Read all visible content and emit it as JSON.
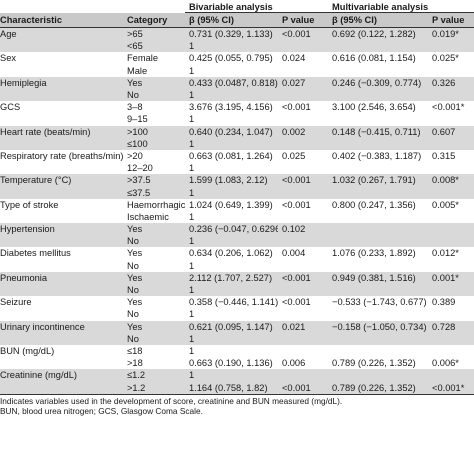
{
  "table": {
    "header_groups": [
      "Bivariable analysis",
      "Multivariable analysis"
    ],
    "columns": [
      "Characteristic",
      "Category",
      "β (95% CI)",
      "P value",
      "β (95% CI)",
      "P value"
    ],
    "rows": [
      [
        "Age",
        ">65",
        "0.731 (0.329, 1.133)",
        "<0.001",
        "0.692 (0.122, 1.282)",
        "0.019*"
      ],
      [
        "",
        "<65",
        "1",
        "",
        "",
        ""
      ],
      [
        "Sex",
        "Female",
        "0.425 (0.055, 0.795)",
        "0.024",
        "0.616 (0.081, 1.154)",
        "0.025*"
      ],
      [
        "",
        "Male",
        "1",
        "",
        "",
        ""
      ],
      [
        "Hemiplegia",
        "Yes",
        "0.433 (0.0487, 0.818)",
        "0.027",
        "0.246 (−0.309, 0.774)",
        "0.326"
      ],
      [
        "",
        "No",
        "1",
        "",
        "",
        ""
      ],
      [
        "GCS",
        "3–8",
        "3.676 (3.195, 4.156)",
        "<0.001",
        "3.100 (2.546, 3.654)",
        "<0.001*"
      ],
      [
        "",
        "9–15",
        "1",
        "",
        "",
        ""
      ],
      [
        "Heart rate (beats/min)",
        ">100",
        "0.640 (0.234, 1.047)",
        "0.002",
        "0.148 (−0.415, 0.711)",
        "0.607"
      ],
      [
        "",
        "≤100",
        "1",
        "",
        "",
        ""
      ],
      [
        "Respiratory rate (breaths/min)",
        ">20",
        "0.663 (0.081, 1.264)",
        "0.025",
        "0.402 (−0.383, 1.187)",
        "0.315"
      ],
      [
        "",
        "12–20",
        "1",
        "",
        "",
        ""
      ],
      [
        "Temperature (°C)",
        ">37.5",
        "1.599 (1.083, 2.12)",
        "<0.001",
        "1.032 (0.267, 1.791)",
        "0.008*"
      ],
      [
        "",
        "≤37.5",
        "1",
        "",
        "",
        ""
      ],
      [
        "Type of stroke",
        "Haemorrhagic",
        "1.024 (0.649, 1.399)",
        "<0.001",
        "0.800 (0.247, 1.356)",
        "0.005*"
      ],
      [
        "",
        "Ischaemic",
        "1",
        "",
        "",
        ""
      ],
      [
        "Hypertension",
        "Yes",
        "0.236 (−0.047, 0.6296)",
        "0.102",
        "",
        ""
      ],
      [
        "",
        "No",
        "1",
        "",
        "",
        ""
      ],
      [
        "Diabetes mellitus",
        "Yes",
        "0.634 (0.206, 1.062)",
        "0.004",
        "1.076 (0.233, 1.892)",
        "0.012*"
      ],
      [
        "",
        "No",
        "1",
        "",
        "",
        ""
      ],
      [
        "Pneumonia",
        "Yes",
        "2.112 (1.707, 2.527)",
        "<0.001",
        "0.949 (0.381, 1.516)",
        "0.001*"
      ],
      [
        "",
        "No",
        "1",
        "",
        "",
        ""
      ],
      [
        "Seizure",
        "Yes",
        "0.358 (−0.446, 1.141)",
        "<0.001",
        "−0.533 (−1.743, 0.677)",
        "0.389"
      ],
      [
        "",
        "No",
        "1",
        "",
        "",
        ""
      ],
      [
        "Urinary incontinence",
        "Yes",
        "0.621 (0.095, 1.147)",
        "0.021",
        "−0.158 (−1.050, 0.734)",
        "0.728"
      ],
      [
        "",
        "No",
        "1",
        "",
        "",
        ""
      ],
      [
        "BUN (mg/dL)",
        "≤18",
        "1",
        "",
        "",
        ""
      ],
      [
        "",
        ">18",
        "0.663 (0.190, 1.136)",
        "0.006",
        "0.789 (0.226, 1.352)",
        "0.006*"
      ],
      [
        "Creatinine (mg/dL)",
        "≤1.2",
        "1",
        "",
        "",
        ""
      ],
      [
        "",
        ">1.2",
        "1.164 (0.758, 1.82)",
        "<0.001",
        "0.789 (0.226, 1.352)",
        "<0.001*"
      ]
    ]
  },
  "footnotes": [
    "Indicates variables used in the development of score, creatinine and BUN measured (mg/dL).",
    "BUN, blood urea nitrogen; GCS, Glasgow Coma Scale."
  ]
}
